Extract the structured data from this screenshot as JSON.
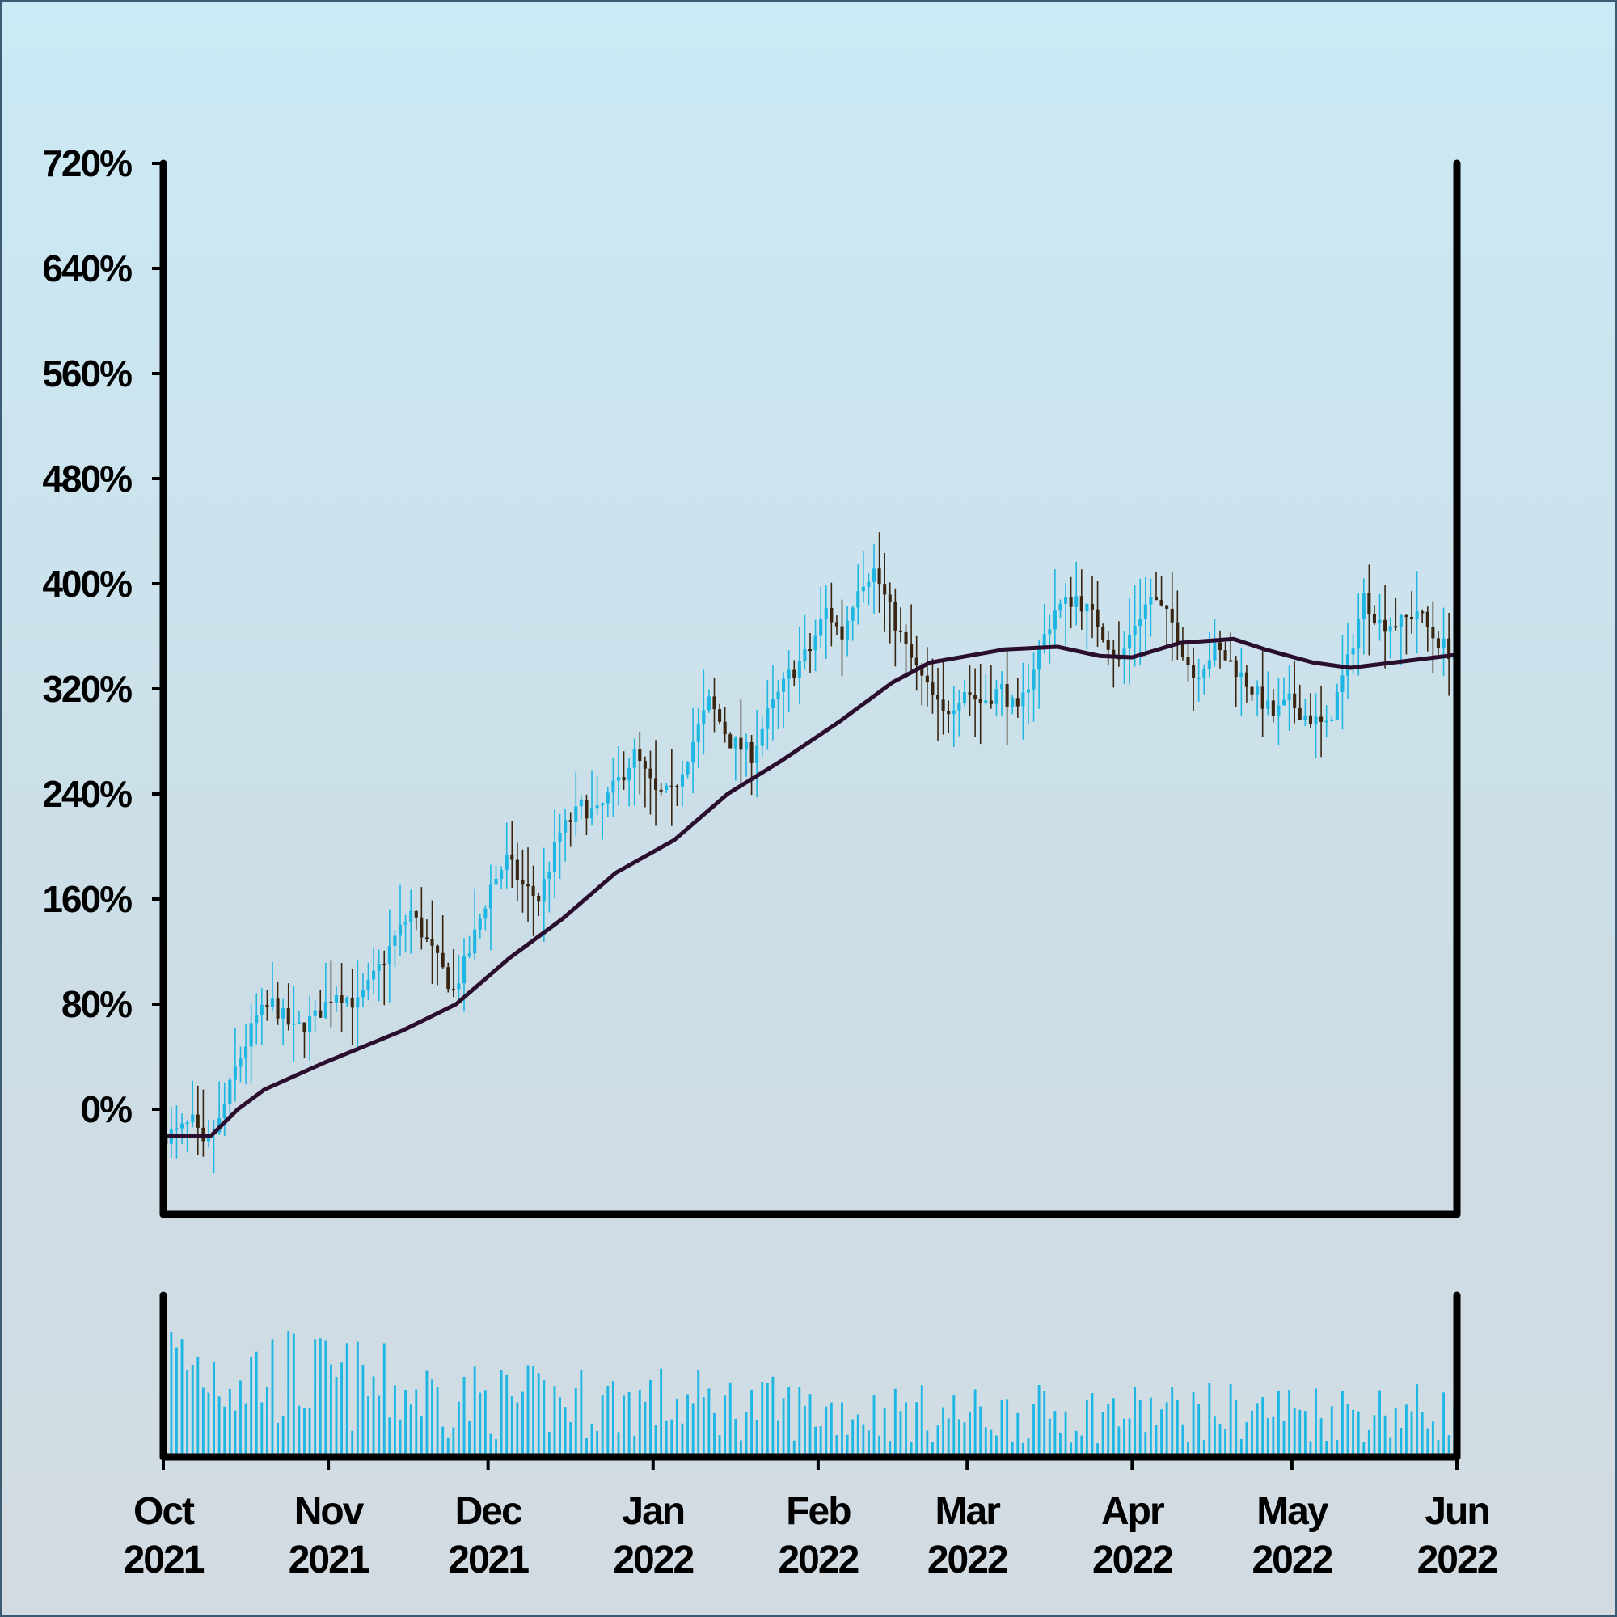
{
  "colors": {
    "up": "#1eb6e3",
    "down": "#3a2510",
    "ma": "#2b0d2e",
    "volume": "#1eb6e3",
    "axis": "#000000"
  },
  "chart_data": {
    "type": "candlestick",
    "title": "",
    "xlabel": "",
    "ylabel": "",
    "ylim": [
      -80,
      720
    ],
    "y_ticks": [
      "0%",
      "80%",
      "160%",
      "240%",
      "320%",
      "400%",
      "480%",
      "560%",
      "640%",
      "720%"
    ],
    "y_tick_values": [
      0,
      80,
      160,
      240,
      320,
      400,
      480,
      560,
      640,
      720
    ],
    "x_range": [
      "2021-10-01",
      "2022-06-01"
    ],
    "x_ticks": [
      {
        "date": "2021-10-01",
        "month": "Oct",
        "year": "2021"
      },
      {
        "date": "2021-11-01",
        "month": "Nov",
        "year": "2021"
      },
      {
        "date": "2021-12-01",
        "month": "Dec",
        "year": "2021"
      },
      {
        "date": "2022-01-01",
        "month": "Jan",
        "year": "2022"
      },
      {
        "date": "2022-02-01",
        "month": "Feb",
        "year": "2022"
      },
      {
        "date": "2022-03-01",
        "month": "Mar",
        "year": "2022"
      },
      {
        "date": "2022-04-01",
        "month": "Apr",
        "year": "2022"
      },
      {
        "date": "2022-05-01",
        "month": "May",
        "year": "2022"
      },
      {
        "date": "2022-06-01",
        "month": "Jun",
        "year": "2022"
      }
    ],
    "close_trend": [
      [
        "2021-10-01",
        -20
      ],
      [
        "2021-10-04",
        -18
      ],
      [
        "2021-10-07",
        -10
      ],
      [
        "2021-10-09",
        -30
      ],
      [
        "2021-10-12",
        -10
      ],
      [
        "2021-10-15",
        30
      ],
      [
        "2021-10-19",
        70
      ],
      [
        "2021-10-22",
        80
      ],
      [
        "2021-10-26",
        60
      ],
      [
        "2021-10-30",
        70
      ],
      [
        "2021-11-03",
        90
      ],
      [
        "2021-11-07",
        80
      ],
      [
        "2021-11-10",
        100
      ],
      [
        "2021-11-14",
        130
      ],
      [
        "2021-11-17",
        150
      ],
      [
        "2021-11-21",
        120
      ],
      [
        "2021-11-25",
        90
      ],
      [
        "2021-11-28",
        120
      ],
      [
        "2021-12-02",
        170
      ],
      [
        "2021-12-05",
        190
      ],
      [
        "2021-12-08",
        170
      ],
      [
        "2021-12-11",
        160
      ],
      [
        "2021-12-15",
        210
      ],
      [
        "2021-12-19",
        230
      ],
      [
        "2021-12-22",
        225
      ],
      [
        "2021-12-26",
        250
      ],
      [
        "2021-12-29",
        270
      ],
      [
        "2022-01-02",
        240
      ],
      [
        "2022-01-05",
        240
      ],
      [
        "2022-01-09",
        280
      ],
      [
        "2022-01-12",
        310
      ],
      [
        "2022-01-16",
        280
      ],
      [
        "2022-01-20",
        270
      ],
      [
        "2022-01-23",
        300
      ],
      [
        "2022-01-27",
        330
      ],
      [
        "2022-01-31",
        350
      ],
      [
        "2022-02-03",
        380
      ],
      [
        "2022-02-06",
        360
      ],
      [
        "2022-02-09",
        400
      ],
      [
        "2022-02-12",
        410
      ],
      [
        "2022-02-15",
        380
      ],
      [
        "2022-02-18",
        350
      ],
      [
        "2022-02-22",
        320
      ],
      [
        "2022-02-25",
        300
      ],
      [
        "2022-03-01",
        320
      ],
      [
        "2022-03-04",
        310
      ],
      [
        "2022-03-08",
        320
      ],
      [
        "2022-03-11",
        300
      ],
      [
        "2022-03-15",
        350
      ],
      [
        "2022-03-18",
        380
      ],
      [
        "2022-03-22",
        390
      ],
      [
        "2022-03-26",
        370
      ],
      [
        "2022-03-30",
        340
      ],
      [
        "2022-04-02",
        370
      ],
      [
        "2022-04-05",
        390
      ],
      [
        "2022-04-09",
        370
      ],
      [
        "2022-04-13",
        330
      ],
      [
        "2022-04-17",
        350
      ],
      [
        "2022-04-20",
        340
      ],
      [
        "2022-04-24",
        320
      ],
      [
        "2022-04-28",
        300
      ],
      [
        "2022-05-01",
        310
      ],
      [
        "2022-05-04",
        300
      ],
      [
        "2022-05-08",
        290
      ],
      [
        "2022-05-12",
        340
      ],
      [
        "2022-05-15",
        390
      ],
      [
        "2022-05-18",
        370
      ],
      [
        "2022-05-22",
        370
      ],
      [
        "2022-05-25",
        380
      ],
      [
        "2022-05-28",
        360
      ],
      [
        "2022-06-01",
        345
      ]
    ],
    "moving_average": [
      [
        "2021-10-01",
        -20
      ],
      [
        "2021-10-10",
        -20
      ],
      [
        "2021-10-15",
        0
      ],
      [
        "2021-10-20",
        15
      ],
      [
        "2021-10-31",
        35
      ],
      [
        "2021-11-15",
        60
      ],
      [
        "2021-11-25",
        80
      ],
      [
        "2021-12-05",
        115
      ],
      [
        "2021-12-15",
        145
      ],
      [
        "2021-12-25",
        180
      ],
      [
        "2022-01-05",
        205
      ],
      [
        "2022-01-15",
        240
      ],
      [
        "2022-01-25",
        265
      ],
      [
        "2022-02-05",
        295
      ],
      [
        "2022-02-15",
        325
      ],
      [
        "2022-02-22",
        340
      ],
      [
        "2022-03-01",
        345
      ],
      [
        "2022-03-08",
        350
      ],
      [
        "2022-03-18",
        352
      ],
      [
        "2022-03-26",
        345
      ],
      [
        "2022-04-01",
        344
      ],
      [
        "2022-04-10",
        355
      ],
      [
        "2022-04-20",
        358
      ],
      [
        "2022-04-26",
        350
      ],
      [
        "2022-05-05",
        340
      ],
      [
        "2022-05-12",
        336
      ],
      [
        "2022-05-20",
        340
      ],
      [
        "2022-05-28",
        344
      ],
      [
        "2022-06-01",
        346
      ]
    ],
    "volume_trend": [
      [
        "2021-10-01",
        0.85
      ],
      [
        "2021-10-20",
        0.75
      ],
      [
        "2021-11-05",
        0.65
      ],
      [
        "2021-12-01",
        0.5
      ],
      [
        "2022-01-01",
        0.5
      ],
      [
        "2022-02-01",
        0.42
      ],
      [
        "2022-03-01",
        0.38
      ],
      [
        "2022-04-01",
        0.4
      ],
      [
        "2022-05-01",
        0.42
      ],
      [
        "2022-06-01",
        0.4
      ]
    ],
    "grid": false,
    "legend": "none"
  }
}
